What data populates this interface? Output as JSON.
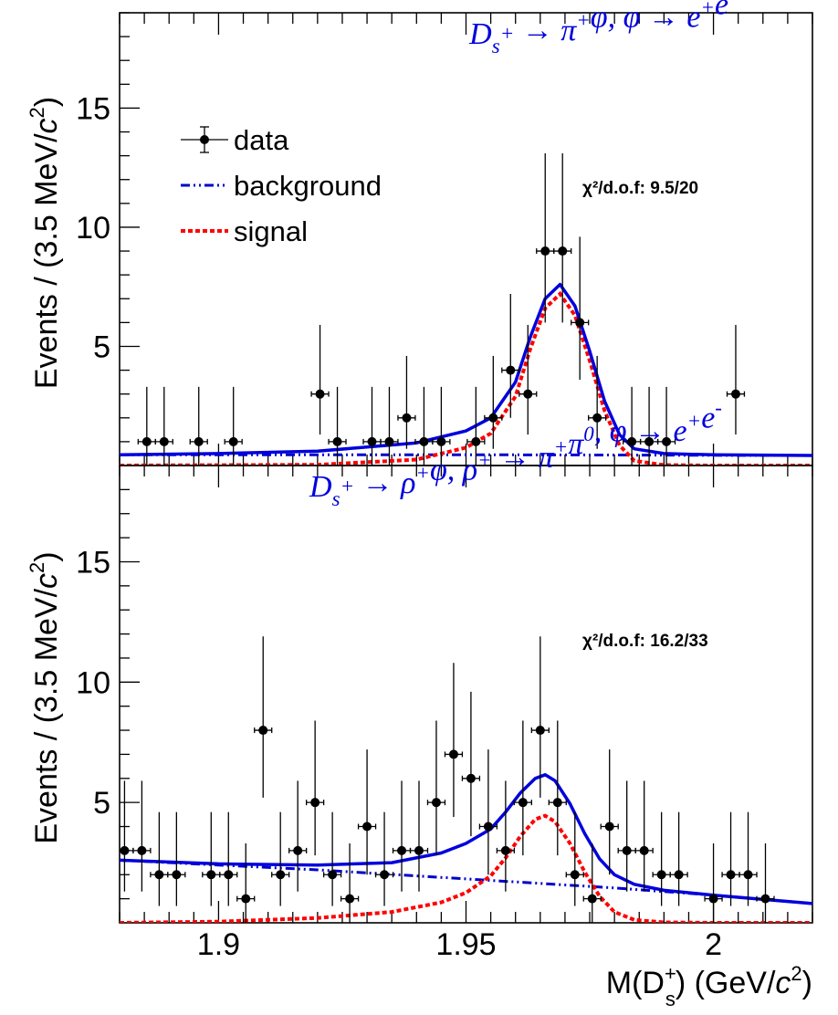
{
  "chart_data": {
    "type": "scatter",
    "xlabel": "M(D_s^+) (GeV/c^2)",
    "xlim": [
      1.88,
      2.02
    ],
    "xticks": [
      1.9,
      1.95,
      2.0
    ],
    "xtick_labels": [
      "1.9",
      "1.95",
      "2"
    ],
    "bin_half_width": 0.00175,
    "legend": {
      "placement": "top-left",
      "entries": [
        {
          "key": "data",
          "label": "data"
        },
        {
          "key": "background",
          "label": "background"
        },
        {
          "key": "signal",
          "label": "signal"
        }
      ]
    },
    "colors": {
      "data": "#000000",
      "background": "#0000cc",
      "signal": "#ff0000",
      "total": "#0000dd",
      "title": "#0000dd"
    },
    "panels": [
      {
        "title": "D_s^+ → π^+φ, φ → e^+e^-",
        "ylabel": "Events / (3.5 MeV/c^2)",
        "ylim": [
          0,
          19
        ],
        "yticks": [
          5,
          10,
          15
        ],
        "chi2_label": "χ²/d.o.f: 9.5/20",
        "data": [
          {
            "x": 1.8855,
            "y": 1,
            "elow": 1,
            "ehigh": 2.3
          },
          {
            "x": 1.889,
            "y": 1,
            "elow": 1,
            "ehigh": 2.3
          },
          {
            "x": 1.896,
            "y": 1,
            "elow": 1,
            "ehigh": 2.3
          },
          {
            "x": 1.903,
            "y": 1,
            "elow": 1,
            "ehigh": 2.3
          },
          {
            "x": 1.9205,
            "y": 3,
            "elow": 1.7,
            "ehigh": 2.9
          },
          {
            "x": 1.924,
            "y": 1,
            "elow": 1,
            "ehigh": 2.3
          },
          {
            "x": 1.931,
            "y": 1,
            "elow": 1,
            "ehigh": 2.3
          },
          {
            "x": 1.9345,
            "y": 1,
            "elow": 1,
            "ehigh": 2.3
          },
          {
            "x": 1.938,
            "y": 2,
            "elow": 1.3,
            "ehigh": 2.6
          },
          {
            "x": 1.9415,
            "y": 1,
            "elow": 1,
            "ehigh": 2.3
          },
          {
            "x": 1.945,
            "y": 1,
            "elow": 1,
            "ehigh": 2.3
          },
          {
            "x": 1.952,
            "y": 1,
            "elow": 1,
            "ehigh": 2.3
          },
          {
            "x": 1.9555,
            "y": 2,
            "elow": 1.3,
            "ehigh": 2.6
          },
          {
            "x": 1.959,
            "y": 4,
            "elow": 2.0,
            "ehigh": 3.2
          },
          {
            "x": 1.9625,
            "y": 3,
            "elow": 1.7,
            "ehigh": 2.9
          },
          {
            "x": 1.966,
            "y": 9,
            "elow": 3.0,
            "ehigh": 4.1
          },
          {
            "x": 1.9695,
            "y": 9,
            "elow": 3.0,
            "ehigh": 4.1
          },
          {
            "x": 1.973,
            "y": 6,
            "elow": 2.4,
            "ehigh": 3.6
          },
          {
            "x": 1.9765,
            "y": 2,
            "elow": 1.3,
            "ehigh": 2.6
          },
          {
            "x": 1.9835,
            "y": 1,
            "elow": 1,
            "ehigh": 2.3
          },
          {
            "x": 1.987,
            "y": 1,
            "elow": 1,
            "ehigh": 2.3
          },
          {
            "x": 1.9905,
            "y": 1,
            "elow": 1,
            "ehigh": 2.3
          },
          {
            "x": 2.0045,
            "y": 3,
            "elow": 1.7,
            "ehigh": 2.9
          }
        ],
        "background": {
          "x": [
            1.88,
            1.9,
            1.92,
            1.94,
            1.96,
            1.98,
            2.0,
            2.02
          ],
          "y": [
            0.45,
            0.45,
            0.45,
            0.45,
            0.45,
            0.44,
            0.43,
            0.42
          ]
        },
        "signal": {
          "x": [
            1.88,
            1.92,
            1.94,
            1.95,
            1.955,
            1.96,
            1.963,
            1.966,
            1.969,
            1.972,
            1.975,
            1.978,
            1.981,
            1.984,
            1.99,
            2.0,
            2.02
          ],
          "y": [
            0.0,
            0.03,
            0.25,
            0.75,
            1.35,
            2.9,
            4.9,
            6.6,
            7.2,
            6.3,
            4.4,
            2.3,
            0.85,
            0.2,
            0.02,
            0.0,
            0.0
          ]
        },
        "total": {
          "x": [
            1.88,
            1.9,
            1.92,
            1.94,
            1.95,
            1.955,
            1.96,
            1.963,
            1.966,
            1.969,
            1.972,
            1.975,
            1.978,
            1.981,
            1.984,
            1.99,
            2.0,
            2.02
          ],
          "y": [
            0.45,
            0.5,
            0.6,
            0.95,
            1.45,
            2.0,
            3.5,
            5.4,
            7.0,
            7.6,
            6.7,
            4.8,
            2.7,
            1.3,
            0.7,
            0.5,
            0.45,
            0.42
          ]
        }
      },
      {
        "title": "D_s^+ → ρ^+φ, ρ^+ → π^+π^0, φ → e^+e^-",
        "ylabel": "Events / (3.5 MeV/c^2)",
        "ylim": [
          0,
          19
        ],
        "yticks": [
          5,
          10,
          15
        ],
        "chi2_label": "χ²/d.o.f: 16.2/33",
        "data": [
          {
            "x": 1.881,
            "y": 3,
            "elow": 1.7,
            "ehigh": 2.9
          },
          {
            "x": 1.8845,
            "y": 3,
            "elow": 1.7,
            "ehigh": 2.9
          },
          {
            "x": 1.888,
            "y": 2,
            "elow": 1.3,
            "ehigh": 2.6
          },
          {
            "x": 1.8915,
            "y": 2,
            "elow": 1.3,
            "ehigh": 2.6
          },
          {
            "x": 1.8985,
            "y": 2,
            "elow": 1.3,
            "ehigh": 2.6
          },
          {
            "x": 1.902,
            "y": 2,
            "elow": 1.3,
            "ehigh": 2.6
          },
          {
            "x": 1.9055,
            "y": 1,
            "elow": 1,
            "ehigh": 2.3
          },
          {
            "x": 1.909,
            "y": 8,
            "elow": 2.8,
            "ehigh": 3.9
          },
          {
            "x": 1.9125,
            "y": 2,
            "elow": 1.3,
            "ehigh": 2.6
          },
          {
            "x": 1.916,
            "y": 3,
            "elow": 1.7,
            "ehigh": 2.9
          },
          {
            "x": 1.9195,
            "y": 5,
            "elow": 2.2,
            "ehigh": 3.4
          },
          {
            "x": 1.923,
            "y": 2,
            "elow": 1.3,
            "ehigh": 2.6
          },
          {
            "x": 1.9265,
            "y": 1,
            "elow": 1,
            "ehigh": 2.3
          },
          {
            "x": 1.93,
            "y": 4,
            "elow": 2.0,
            "ehigh": 3.2
          },
          {
            "x": 1.9335,
            "y": 2,
            "elow": 1.3,
            "ehigh": 2.6
          },
          {
            "x": 1.937,
            "y": 3,
            "elow": 1.7,
            "ehigh": 2.9
          },
          {
            "x": 1.9405,
            "y": 3,
            "elow": 1.7,
            "ehigh": 2.9
          },
          {
            "x": 1.944,
            "y": 5,
            "elow": 2.2,
            "ehigh": 3.4
          },
          {
            "x": 1.9475,
            "y": 7,
            "elow": 2.6,
            "ehigh": 3.8
          },
          {
            "x": 1.951,
            "y": 6,
            "elow": 2.4,
            "ehigh": 3.6
          },
          {
            "x": 1.9545,
            "y": 4,
            "elow": 2.0,
            "ehigh": 3.2
          },
          {
            "x": 1.958,
            "y": 3,
            "elow": 1.7,
            "ehigh": 2.9
          },
          {
            "x": 1.9615,
            "y": 5,
            "elow": 2.2,
            "ehigh": 3.4
          },
          {
            "x": 1.965,
            "y": 8,
            "elow": 2.8,
            "ehigh": 3.9
          },
          {
            "x": 1.9685,
            "y": 5,
            "elow": 2.2,
            "ehigh": 3.4
          },
          {
            "x": 1.972,
            "y": 2,
            "elow": 1.3,
            "ehigh": 2.6
          },
          {
            "x": 1.9755,
            "y": 1,
            "elow": 1,
            "ehigh": 2.3
          },
          {
            "x": 1.979,
            "y": 4,
            "elow": 2.0,
            "ehigh": 3.2
          },
          {
            "x": 1.9825,
            "y": 3,
            "elow": 1.7,
            "ehigh": 2.9
          },
          {
            "x": 1.986,
            "y": 3,
            "elow": 1.7,
            "ehigh": 2.9
          },
          {
            "x": 1.9895,
            "y": 2,
            "elow": 1.3,
            "ehigh": 2.6
          },
          {
            "x": 1.993,
            "y": 2,
            "elow": 1.3,
            "ehigh": 2.6
          },
          {
            "x": 2.0,
            "y": 1,
            "elow": 1,
            "ehigh": 2.3
          },
          {
            "x": 2.0035,
            "y": 2,
            "elow": 1.3,
            "ehigh": 2.6
          },
          {
            "x": 2.007,
            "y": 2,
            "elow": 1.3,
            "ehigh": 2.6
          },
          {
            "x": 2.0105,
            "y": 1,
            "elow": 1,
            "ehigh": 2.3
          }
        ],
        "background": {
          "x": [
            1.88,
            1.9,
            1.92,
            1.94,
            1.96,
            1.98,
            2.0,
            2.02
          ],
          "y": [
            2.6,
            2.4,
            2.2,
            1.95,
            1.7,
            1.45,
            1.15,
            0.8
          ]
        },
        "signal": {
          "x": [
            1.88,
            1.9,
            1.92,
            1.935,
            1.945,
            1.95,
            1.955,
            1.958,
            1.961,
            1.964,
            1.966,
            1.968,
            1.971,
            1.974,
            1.977,
            1.98,
            1.984,
            1.99,
            2.0,
            2.02
          ],
          "y": [
            0.0,
            0.05,
            0.2,
            0.45,
            0.85,
            1.25,
            1.95,
            2.7,
            3.6,
            4.3,
            4.45,
            4.2,
            3.3,
            2.1,
            1.1,
            0.45,
            0.12,
            0.02,
            0.0,
            0.0
          ]
        },
        "total": {
          "x": [
            1.88,
            1.9,
            1.92,
            1.935,
            1.945,
            1.95,
            1.955,
            1.958,
            1.961,
            1.964,
            1.966,
            1.968,
            1.971,
            1.974,
            1.977,
            1.98,
            1.984,
            1.99,
            2.0,
            2.02
          ],
          "y": [
            2.6,
            2.45,
            2.4,
            2.5,
            2.9,
            3.3,
            3.9,
            4.6,
            5.4,
            6.0,
            6.15,
            5.9,
            4.95,
            3.7,
            2.65,
            2.0,
            1.6,
            1.35,
            1.15,
            0.8
          ]
        }
      }
    ]
  }
}
